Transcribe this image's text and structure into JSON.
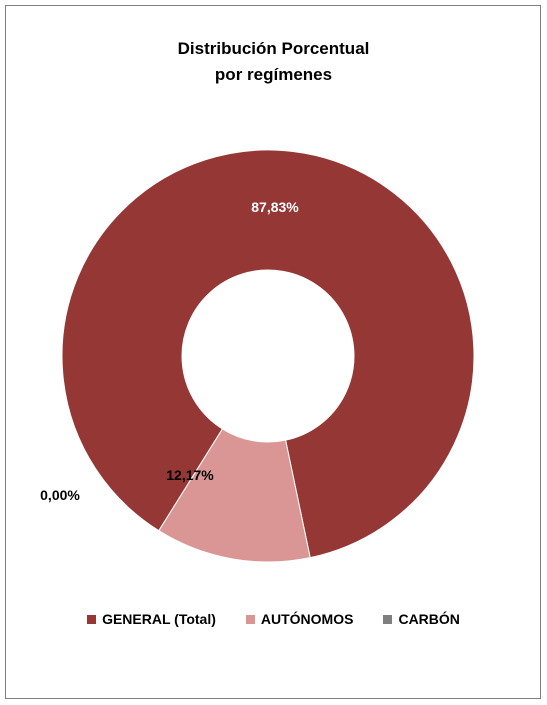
{
  "chart_data": {
    "type": "pie",
    "variant": "doughnut",
    "title_lines": [
      "Distribución Porcentual",
      "por regímenes"
    ],
    "categories": [
      "GENERAL (Total)",
      "AUTÓNOMOS",
      "CARBÓN"
    ],
    "values": [
      87.83,
      12.17,
      0.0
    ],
    "data_labels": [
      "87,83%",
      "12,17%",
      "0,00%"
    ],
    "colors": [
      "#953735",
      "#d99694",
      "#7f7f7f"
    ],
    "label_colors": [
      "#ffffff",
      "#000000",
      "#000000"
    ],
    "legend_position": "bottom"
  }
}
